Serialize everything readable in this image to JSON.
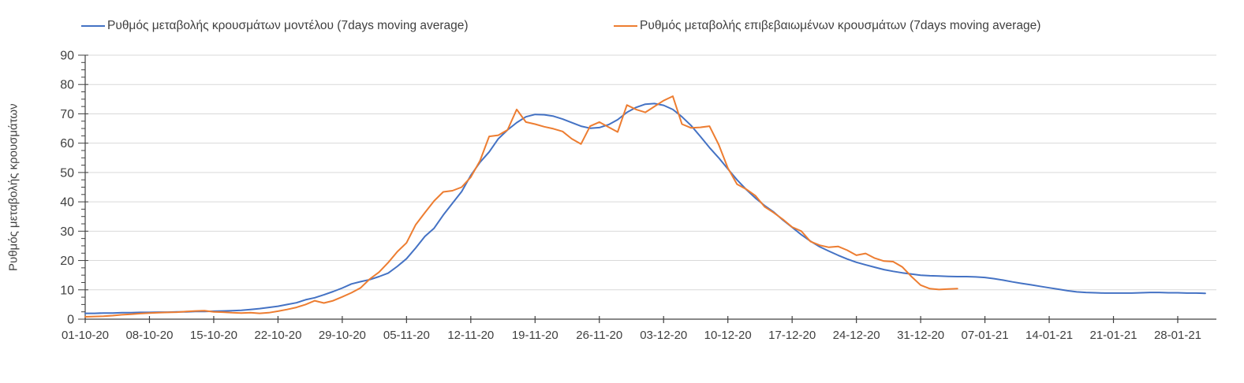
{
  "colors": {
    "model_line": "#4472C4",
    "confirmed_line": "#ED7D31",
    "gridline": "#D9D9D9",
    "axis": "#404040",
    "text": "#404040",
    "background": "#FFFFFF"
  },
  "chart_data": {
    "type": "line",
    "title": "",
    "ylabel": "Ρυθμός μεταβολής κρουσμάτων",
    "xlabel": "",
    "ylim": [
      0,
      90
    ],
    "y_tick_step": 10,
    "y_minor_tick_step": 2.5,
    "grid": "horizontal",
    "legend_position": "top",
    "x_unit": "day",
    "x_tick_interval_days": 7,
    "x_tick_labels": [
      "01-10-20",
      "08-10-20",
      "15-10-20",
      "22-10-20",
      "29-10-20",
      "05-11-20",
      "12-11-20",
      "19-11-20",
      "26-11-20",
      "03-12-20",
      "10-12-20",
      "17-12-20",
      "24-12-20",
      "31-12-20",
      "07-01-21",
      "14-01-21",
      "21-01-21",
      "28-01-21"
    ],
    "series": [
      {
        "name": "Ρυθμός μεταβολής κρουσμάτων μοντέλου (7days moving average)",
        "color": "#4472C4",
        "start": "01-10-20",
        "end": "31-01-21",
        "values": [
          2.0,
          2.0,
          2.1,
          2.1,
          2.2,
          2.2,
          2.3,
          2.3,
          2.4,
          2.4,
          2.5,
          2.5,
          2.6,
          2.6,
          2.7,
          2.8,
          2.9,
          3.0,
          3.3,
          3.6,
          4.0,
          4.4,
          5.0,
          5.6,
          6.6,
          7.3,
          8.3,
          9.4,
          10.6,
          12.0,
          12.8,
          13.5,
          14.5,
          15.7,
          18.0,
          20.6,
          24.3,
          28.2,
          31.0,
          35.5,
          39.5,
          43.5,
          49.0,
          53.5,
          57.0,
          61.5,
          64.5,
          67.0,
          69.0,
          69.8,
          69.7,
          69.2,
          68.2,
          67.0,
          65.8,
          65.1,
          65.3,
          66.3,
          68.0,
          70.5,
          72.2,
          73.3,
          73.5,
          72.9,
          71.5,
          69.0,
          66.0,
          62.3,
          58.5,
          55.0,
          51.2,
          47.5,
          44.2,
          41.3,
          38.7,
          36.5,
          33.8,
          31.3,
          28.8,
          26.6,
          24.7,
          23.2,
          21.8,
          20.5,
          19.4,
          18.5,
          17.7,
          16.9,
          16.3,
          15.8,
          15.4,
          15.0,
          14.8,
          14.7,
          14.6,
          14.5,
          14.5,
          14.4,
          14.2,
          13.8,
          13.3,
          12.7,
          12.2,
          11.7,
          11.2,
          10.7,
          10.2,
          9.7,
          9.3,
          9.1,
          9.0,
          8.9,
          8.9,
          8.9,
          8.9,
          9.0,
          9.1,
          9.1,
          9.0,
          9.0,
          8.9,
          8.9,
          8.8
        ]
      },
      {
        "name": "Ρυθμός μεταβολής επιβεβαιωμένων κρουσμάτων (7days moving average)",
        "color": "#ED7D31",
        "start": "01-10-20",
        "end": "04-01-21",
        "values": [
          0.8,
          0.9,
          1.0,
          1.2,
          1.5,
          1.7,
          1.9,
          2.1,
          2.2,
          2.3,
          2.4,
          2.6,
          2.8,
          2.9,
          2.5,
          2.4,
          2.2,
          2.1,
          2.2,
          2.0,
          2.2,
          2.7,
          3.3,
          4.0,
          5.0,
          6.3,
          5.5,
          6.3,
          7.6,
          9.0,
          10.7,
          13.7,
          16.0,
          19.3,
          23.0,
          26.0,
          32.2,
          36.3,
          40.3,
          43.4,
          43.8,
          45.0,
          48.4,
          54.0,
          62.3,
          62.7,
          64.5,
          71.5,
          67.2,
          66.5,
          65.6,
          64.9,
          64.0,
          61.5,
          59.7,
          65.8,
          67.2,
          65.5,
          63.8,
          73.0,
          71.5,
          70.5,
          72.5,
          74.5,
          76.0,
          66.5,
          65.2,
          65.4,
          65.8,
          59.5,
          51.5,
          46.0,
          44.3,
          42.1,
          38.3,
          36.3,
          34.0,
          31.4,
          30.0,
          26.5,
          25.2,
          24.5,
          24.8,
          23.5,
          21.8,
          22.4,
          20.8,
          19.8,
          19.6,
          17.8,
          14.5,
          11.6,
          10.4,
          10.1,
          10.3,
          10.4
        ]
      }
    ]
  }
}
